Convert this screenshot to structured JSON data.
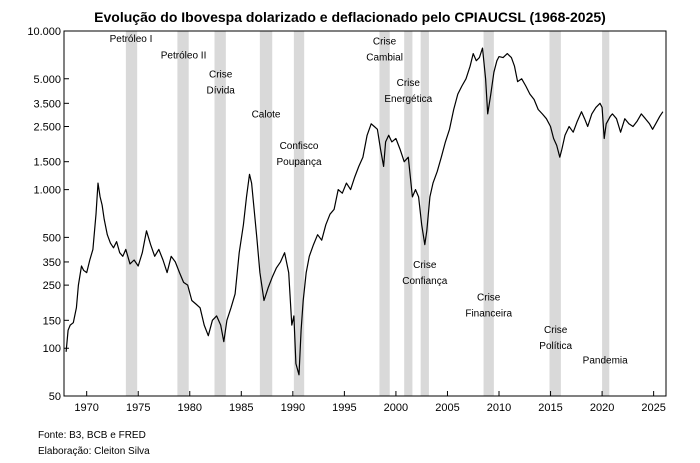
{
  "chart_data": {
    "type": "line",
    "title": "Evolução do Ibovespa dolarizado e deflacionado pelo CPIAUCSL (1968-2025)",
    "xlabel": "",
    "ylabel": "",
    "y_scale": "log",
    "xlim": [
      1967.8,
      2026.2
    ],
    "ylim": [
      50,
      10000
    ],
    "x_ticks": [
      1970,
      1975,
      1980,
      1985,
      1990,
      1995,
      2000,
      2005,
      2010,
      2015,
      2020,
      2025
    ],
    "y_ticks": [
      {
        "value": 10000,
        "label": "10.000"
      },
      {
        "value": 5000,
        "label": "5.000"
      },
      {
        "value": 3500,
        "label": "3.500"
      },
      {
        "value": 2500,
        "label": "2.500"
      },
      {
        "value": 1500,
        "label": "1.500"
      },
      {
        "value": 1000,
        "label": "1.000"
      },
      {
        "value": 500,
        "label": "500"
      },
      {
        "value": 350,
        "label": "350"
      },
      {
        "value": 250,
        "label": "250"
      },
      {
        "value": 150,
        "label": "150"
      },
      {
        "value": 100,
        "label": "100"
      },
      {
        "value": 50,
        "label": "50"
      }
    ],
    "grid": false,
    "legend": "none",
    "line_color": "#000000",
    "band_color": "#d9d9d9",
    "shaded_periods": [
      [
        1973.8,
        1974.9
      ],
      [
        1978.8,
        1979.9
      ],
      [
        1982.4,
        1983.5
      ],
      [
        1986.8,
        1988.0
      ],
      [
        1990.1,
        1991.1
      ],
      [
        1998.4,
        1999.4
      ],
      [
        2000.8,
        2001.6
      ],
      [
        2002.4,
        2003.2
      ],
      [
        2008.5,
        2009.5
      ],
      [
        2014.9,
        2016.0
      ],
      [
        2020.0,
        2020.7
      ]
    ],
    "annotations": [
      {
        "lines": [
          "Petróleo I"
        ],
        "x": 1974.3,
        "y": 8500
      },
      {
        "lines": [
          "Petróleo II"
        ],
        "x": 1979.4,
        "y": 6700
      },
      {
        "lines": [
          "Crise",
          "Dívida"
        ],
        "x": 1983.0,
        "y": 5100
      },
      {
        "lines": [
          "Calote"
        ],
        "x": 1987.4,
        "y": 2850
      },
      {
        "lines": [
          "Confisco",
          "Poupança"
        ],
        "x": 1990.6,
        "y": 1800
      },
      {
        "lines": [
          "Crise",
          "Cambial"
        ],
        "x": 1998.9,
        "y": 8200
      },
      {
        "lines": [
          "Crise",
          "Energética"
        ],
        "x": 2001.2,
        "y": 4500
      },
      {
        "lines": [
          "Crise",
          "Confiança"
        ],
        "x": 2002.8,
        "y": 320
      },
      {
        "lines": [
          "Crise",
          "Financeira"
        ],
        "x": 2009.0,
        "y": 200
      },
      {
        "lines": [
          "Crise",
          "Política"
        ],
        "x": 2015.5,
        "y": 125
      },
      {
        "lines": [
          "Pandemia"
        ],
        "x": 2020.3,
        "y": 80
      }
    ],
    "series": [
      {
        "x": [
          1968.0,
          1968.2,
          1968.4,
          1968.7,
          1969.0,
          1969.2,
          1969.5,
          1969.7,
          1970.0,
          1970.3,
          1970.6,
          1970.9,
          1971.1,
          1971.3,
          1971.5,
          1971.7,
          1972.0,
          1972.3,
          1972.6,
          1972.9,
          1973.2,
          1973.5,
          1973.8,
          1974.2,
          1974.6,
          1975.0,
          1975.4,
          1975.8,
          1976.2,
          1976.6,
          1977.0,
          1977.4,
          1977.8,
          1978.2,
          1978.6,
          1979.0,
          1979.4,
          1979.8,
          1980.2,
          1980.6,
          1981.0,
          1981.4,
          1981.8,
          1982.2,
          1982.6,
          1983.0,
          1983.3,
          1983.6,
          1984.0,
          1984.4,
          1984.8,
          1985.2,
          1985.5,
          1985.8,
          1986.0,
          1986.2,
          1986.5,
          1986.8,
          1987.2,
          1987.6,
          1988.0,
          1988.4,
          1988.8,
          1989.2,
          1989.6,
          1989.9,
          1990.1,
          1990.3,
          1990.6,
          1990.8,
          1991.0,
          1991.3,
          1991.6,
          1992.0,
          1992.4,
          1992.8,
          1993.2,
          1993.6,
          1994.0,
          1994.4,
          1994.8,
          1995.2,
          1995.6,
          1996.0,
          1996.4,
          1996.8,
          1997.2,
          1997.6,
          1997.9,
          1998.2,
          1998.5,
          1998.8,
          1999.0,
          1999.3,
          1999.6,
          2000.0,
          2000.4,
          2000.8,
          2001.2,
          2001.6,
          2001.9,
          2002.2,
          2002.5,
          2002.8,
          2003.0,
          2003.3,
          2003.6,
          2004.0,
          2004.4,
          2004.8,
          2005.2,
          2005.6,
          2006.0,
          2006.4,
          2006.8,
          2007.2,
          2007.5,
          2007.8,
          2008.1,
          2008.4,
          2008.7,
          2008.9,
          2009.2,
          2009.5,
          2009.8,
          2010.0,
          2010.4,
          2010.8,
          2011.2,
          2011.5,
          2011.8,
          2012.2,
          2012.6,
          2013.0,
          2013.4,
          2013.8,
          2014.2,
          2014.6,
          2015.0,
          2015.3,
          2015.6,
          2015.9,
          2016.1,
          2016.4,
          2016.8,
          2017.2,
          2017.6,
          2018.0,
          2018.3,
          2018.6,
          2019.0,
          2019.4,
          2019.8,
          2020.0,
          2020.2,
          2020.4,
          2020.8,
          2021.0,
          2021.4,
          2021.8,
          2022.2,
          2022.6,
          2023.0,
          2023.4,
          2023.8,
          2024.2,
          2024.6,
          2024.9,
          2025.2,
          2025.6,
          2025.9
        ],
        "values": [
          95,
          130,
          140,
          145,
          180,
          250,
          330,
          310,
          300,
          360,
          420,
          700,
          1100,
          900,
          800,
          650,
          520,
          460,
          430,
          470,
          400,
          380,
          420,
          340,
          360,
          330,
          400,
          550,
          450,
          380,
          420,
          360,
          300,
          380,
          350,
          300,
          260,
          250,
          200,
          190,
          180,
          140,
          120,
          150,
          160,
          140,
          110,
          150,
          180,
          220,
          400,
          600,
          900,
          1250,
          1100,
          800,
          500,
          300,
          200,
          240,
          280,
          320,
          350,
          400,
          300,
          140,
          160,
          80,
          68,
          130,
          200,
          300,
          380,
          450,
          520,
          480,
          600,
          700,
          750,
          1000,
          950,
          1100,
          1000,
          1200,
          1400,
          1600,
          2200,
          2600,
          2500,
          2400,
          1800,
          1400,
          2000,
          2200,
          2000,
          2100,
          1800,
          1500,
          1600,
          900,
          1000,
          900,
          600,
          450,
          550,
          900,
          1100,
          1300,
          1600,
          2000,
          2400,
          3200,
          4000,
          4500,
          5000,
          6000,
          7200,
          6500,
          6800,
          7800,
          5000,
          3000,
          4000,
          5500,
          6500,
          6900,
          6800,
          7200,
          6800,
          6000,
          4800,
          5000,
          4500,
          4000,
          3700,
          3200,
          3000,
          2800,
          2500,
          2100,
          1900,
          1600,
          1800,
          2200,
          2500,
          2300,
          2700,
          3100,
          2800,
          2500,
          3000,
          3300,
          3500,
          3300,
          2100,
          2600,
          2900,
          3000,
          2800,
          2300,
          2800,
          2600,
          2500,
          2700,
          3000,
          2800,
          2600,
          2400,
          2600,
          2900,
          3100
        ]
      }
    ]
  },
  "footer": {
    "source": "Fonte: B3, BCB e FRED",
    "credit": "Elaboração: Cleiton Silva"
  }
}
